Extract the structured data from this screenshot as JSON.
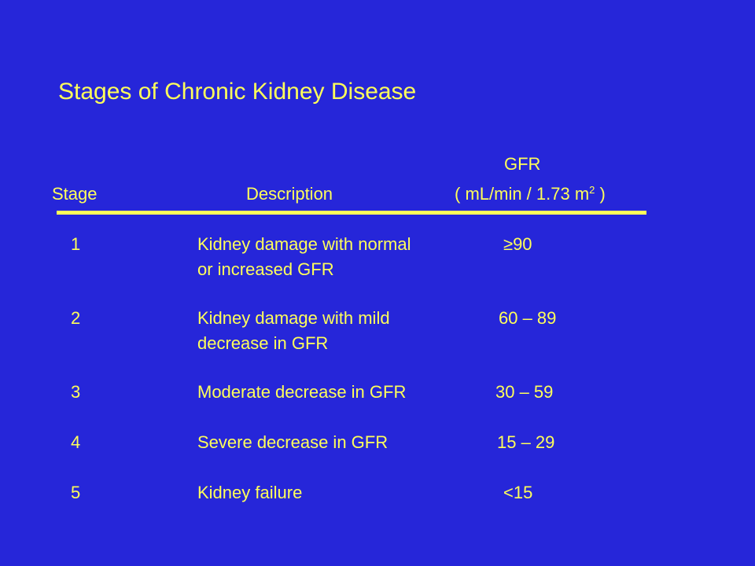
{
  "title": "Stages of Chronic Kidney Disease",
  "header": {
    "stage": "Stage",
    "description": "Description",
    "gfr": "GFR",
    "gfr_unit_pre": "( mL/min / 1.73 m",
    "gfr_unit_sup": "2",
    "gfr_unit_post": " )"
  },
  "rows": [
    {
      "stage": "1",
      "desc_line1": "Kidney damage with normal",
      "desc_line2": "or increased GFR",
      "gfr": "≥90"
    },
    {
      "stage": "2",
      "desc_line1": "Kidney damage with mild",
      "desc_line2": "decrease in GFR",
      "gfr": "60 – 89"
    },
    {
      "stage": "3",
      "desc_line1": "Moderate decrease in GFR",
      "desc_line2": "",
      "gfr": "30 – 59"
    },
    {
      "stage": "4",
      "desc_line1": "Severe decrease in GFR",
      "desc_line2": "",
      "gfr": "15 – 29"
    },
    {
      "stage": "5",
      "desc_line1": "Kidney failure",
      "desc_line2": "",
      "gfr": "<15"
    }
  ],
  "colors": {
    "background": "#2626d9",
    "text": "#ffff5a"
  }
}
